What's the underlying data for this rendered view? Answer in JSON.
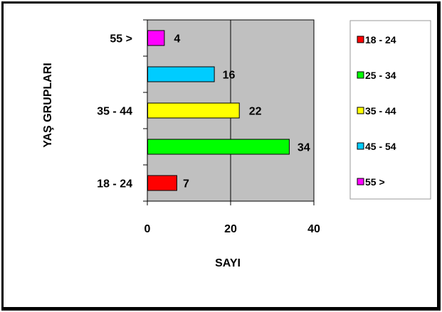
{
  "chart_data": {
    "type": "bar",
    "orientation": "horizontal",
    "categories": [
      "18 - 24",
      "25 - 34",
      "35 - 44",
      "45 - 54",
      "55 >"
    ],
    "category_tick_labels": [
      "18 - 24",
      "",
      "35 - 44",
      "",
      "55 >"
    ],
    "values": [
      7,
      34,
      22,
      16,
      4
    ],
    "value_labels": [
      "7",
      "34",
      "22",
      "16",
      "4"
    ],
    "colors": [
      "#ff0000",
      "#00ff00",
      "#ffff00",
      "#00ccff",
      "#ff00ff"
    ],
    "xlabel": "SAYI",
    "ylabel": "YAŞ GRUPLARI",
    "xlim": [
      0,
      40
    ],
    "x_ticks": [
      0,
      20,
      40
    ],
    "x_tick_labels": [
      "0",
      "20",
      "40"
    ],
    "plot_background": "#c0c0c0",
    "grid": "vertical",
    "legend": {
      "position": "right",
      "entries": [
        {
          "label": "18 - 24",
          "color": "#ff0000"
        },
        {
          "label": "25 - 34",
          "color": "#00ff00"
        },
        {
          "label": "35 - 44",
          "color": "#ffff00"
        },
        {
          "label": "45 - 54",
          "color": "#00ccff"
        },
        {
          "label": "55 >",
          "color": "#ff00ff"
        }
      ]
    }
  }
}
